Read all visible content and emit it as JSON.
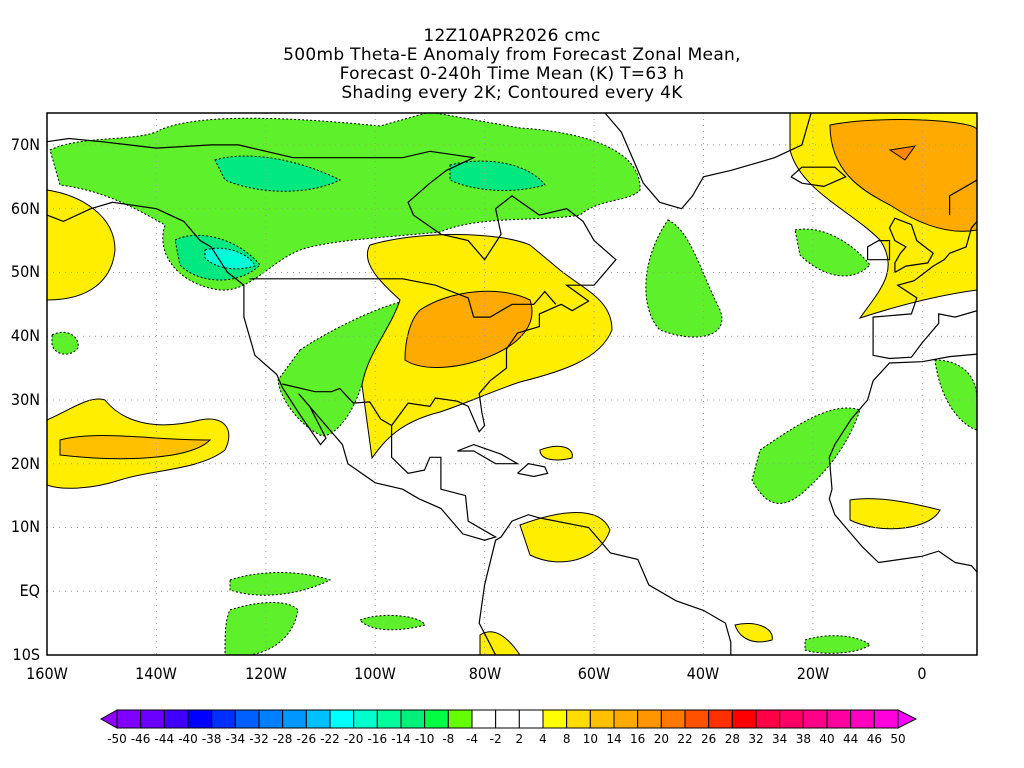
{
  "title": {
    "line1": "12Z10APR2026 cmc",
    "line2": "500mb Theta-E Anomaly from Forecast Zonal Mean,",
    "line3": "Forecast 0-240h Time Mean (K) T=63 h",
    "line4": "Shading every 2K; Contoured every 4K"
  },
  "lat_ticks": [
    "70N",
    "60N",
    "50N",
    "40N",
    "30N",
    "20N",
    "10N",
    "EQ",
    "10S"
  ],
  "lon_ticks": [
    "160W",
    "140W",
    "120W",
    "100W",
    "80W",
    "60W",
    "40W",
    "20W",
    "0"
  ],
  "colorbar": {
    "labels": [
      "-50",
      "-46",
      "-44",
      "-40",
      "-38",
      "-34",
      "-32",
      "-28",
      "-26",
      "-22",
      "-20",
      "-16",
      "-14",
      "-10",
      "-8",
      "-4",
      "-2",
      "2",
      "4",
      "8",
      "10",
      "14",
      "16",
      "20",
      "22",
      "26",
      "28",
      "32",
      "34",
      "38",
      "40",
      "44",
      "46",
      "50"
    ],
    "colors": [
      "#8000ff",
      "#6a00ff",
      "#4000ff",
      "#0000ff",
      "#0030ff",
      "#0060ff",
      "#0080ff",
      "#0098ff",
      "#00c0ff",
      "#00ffff",
      "#00ffcc",
      "#00ff9c",
      "#00f07c",
      "#00ff44",
      "#66ff00",
      "#ffffff",
      "#ffffff",
      "#ffffff",
      "#ffff00",
      "#ffdd00",
      "#ffc000",
      "#ffaa00",
      "#ff9600",
      "#ff7800",
      "#ff5000",
      "#ff3000",
      "#ff0000",
      "#ff0048",
      "#ff0066",
      "#ff0088",
      "#ff00a0",
      "#ff00c0",
      "#ff00dd"
    ],
    "under_color": "#9000ff",
    "over_color": "#ff00ff"
  }
}
